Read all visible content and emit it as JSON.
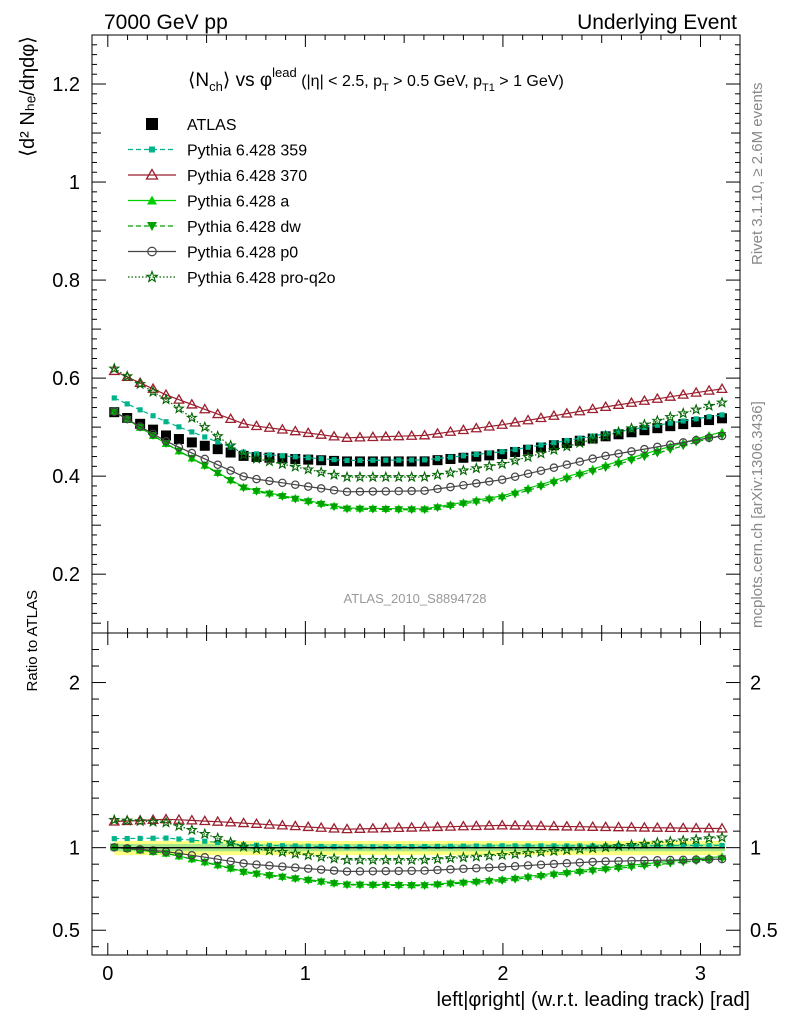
{
  "header": {
    "left": "7000 GeV pp",
    "right": "Underlying Event"
  },
  "side_labels": {
    "rivet": "Rivet 3.1.10, ≥ 2.6M events",
    "mcplots": "mcplots.cern.ch [arXiv:1306.3436]"
  },
  "plot_title": {
    "n": "⟨N",
    "n_sub": "ch",
    "vs": "⟩ vs φ",
    "lead_sup": "lead",
    "cuts_a": " (|η| < 2.5, p",
    "cuts_sub1": "T",
    "cuts_b": " > 0.5 GeV, p",
    "cuts_sub2": "T1",
    "cuts_c": " > 1 GeV)"
  },
  "analysis_label": "ATLAS_2010_S8894728",
  "main_ylabel": "⟨d² Nₕₑ/dηdφ⟩",
  "ratio_ylabel": "Ratio to ATLAS",
  "xlabel": "left|φright| (w.r.t. leading track) [rad]",
  "chart_data": {
    "type": "scatter",
    "x_range": [
      -0.08,
      3.2
    ],
    "main_y_range": [
      0.08,
      1.3
    ],
    "ratio_y_range": [
      0.35,
      2.3
    ],
    "x_ticks": [
      "0",
      "1",
      "2",
      "3"
    ],
    "main_y_ticks": [
      "0.2",
      "0.4",
      "0.6",
      "0.8",
      "1",
      "1.2"
    ],
    "ratio_y_ticks": [
      "0.5",
      "1",
      "2"
    ],
    "legend_position": "top-left",
    "series": [
      {
        "name": "ATLAS",
        "color": "#000000",
        "marker": "square",
        "line": "none",
        "anchors": [
          [
            0.03,
            0.531
          ],
          [
            0.3,
            0.482
          ],
          [
            0.7,
            0.44
          ],
          [
            1.2,
            0.43
          ],
          [
            1.6,
            0.43
          ],
          [
            2.0,
            0.445
          ],
          [
            2.5,
            0.48
          ],
          [
            3.1,
            0.518
          ]
        ]
      },
      {
        "name": "Pythia 6.428 359",
        "color": "#00b38a",
        "marker": "small-square",
        "line": "dashed",
        "anchors": [
          [
            0.03,
            0.56
          ],
          [
            0.3,
            0.51
          ],
          [
            0.7,
            0.447
          ],
          [
            1.2,
            0.432
          ],
          [
            1.6,
            0.433
          ],
          [
            2.0,
            0.45
          ],
          [
            2.5,
            0.485
          ],
          [
            3.1,
            0.525
          ]
        ]
      },
      {
        "name": "Pythia 6.428 370",
        "color": "#9b1f2e",
        "marker": "open-triangle",
        "line": "solid",
        "anchors": [
          [
            0.03,
            0.615
          ],
          [
            0.3,
            0.565
          ],
          [
            0.7,
            0.505
          ],
          [
            1.2,
            0.478
          ],
          [
            1.6,
            0.483
          ],
          [
            2.0,
            0.505
          ],
          [
            2.5,
            0.54
          ],
          [
            3.1,
            0.578
          ]
        ]
      },
      {
        "name": "Pythia 6.428 a",
        "color": "#00d000",
        "marker": "triangle",
        "line": "solid",
        "anchors": [
          [
            0.03,
            0.533
          ],
          [
            0.3,
            0.465
          ],
          [
            0.7,
            0.375
          ],
          [
            1.2,
            0.335
          ],
          [
            1.6,
            0.333
          ],
          [
            2.0,
            0.36
          ],
          [
            2.5,
            0.42
          ],
          [
            3.1,
            0.49
          ]
        ]
      },
      {
        "name": "Pythia 6.428 dw",
        "color": "#00a000",
        "marker": "triangle-down",
        "line": "dashed",
        "anchors": [
          [
            0.03,
            0.533
          ],
          [
            0.3,
            0.465
          ],
          [
            0.7,
            0.373
          ],
          [
            1.2,
            0.333
          ],
          [
            1.6,
            0.331
          ],
          [
            2.0,
            0.356
          ],
          [
            2.5,
            0.415
          ],
          [
            3.1,
            0.483
          ]
        ]
      },
      {
        "name": "Pythia 6.428 p0",
        "color": "#444444",
        "marker": "open-circle",
        "line": "solid",
        "anchors": [
          [
            0.03,
            0.532
          ],
          [
            0.3,
            0.47
          ],
          [
            0.7,
            0.397
          ],
          [
            1.2,
            0.368
          ],
          [
            1.6,
            0.37
          ],
          [
            2.0,
            0.393
          ],
          [
            2.5,
            0.44
          ],
          [
            3.1,
            0.482
          ]
        ]
      },
      {
        "name": "Pythia 6.428 pro-q2o",
        "color": "#006400",
        "marker": "star",
        "line": "dotted",
        "anchors": [
          [
            0.03,
            0.62
          ],
          [
            0.3,
            0.555
          ],
          [
            0.7,
            0.44
          ],
          [
            1.2,
            0.398
          ],
          [
            1.6,
            0.398
          ],
          [
            2.0,
            0.425
          ],
          [
            2.5,
            0.48
          ],
          [
            3.1,
            0.55
          ]
        ]
      }
    ]
  }
}
